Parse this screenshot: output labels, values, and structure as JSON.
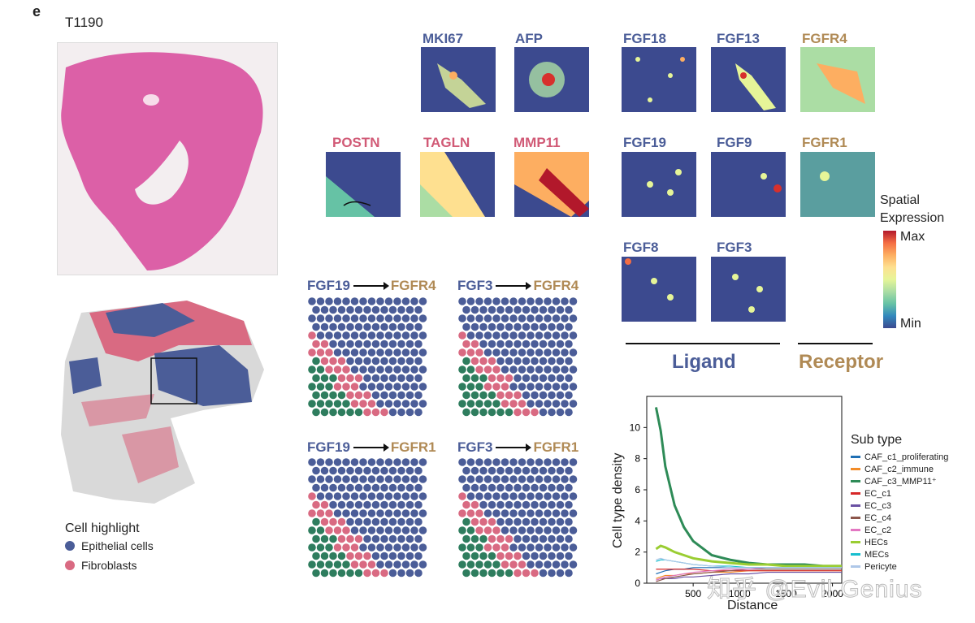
{
  "figure": {
    "panel_letter": "e",
    "sample_id": "T1190"
  },
  "genes_top": {
    "row1": [
      "MKI67",
      "AFP"
    ],
    "row2": [
      "POSTN",
      "TAGLN",
      "MMP11"
    ]
  },
  "ligand_receptor_grid": {
    "row1": [
      "FGF18",
      "FGF13",
      "FGFR4"
    ],
    "row2": [
      "FGF19",
      "FGF9",
      "FGFR1"
    ],
    "row3": [
      "FGF8",
      "FGF3"
    ],
    "ligand_label": "Ligand",
    "receptor_label": "Receptor"
  },
  "colorbar": {
    "title_line1": "Spatial",
    "title_line2": "Expression",
    "max_label": "Max",
    "min_label": "Min"
  },
  "pairs": [
    {
      "ligand": "FGF19",
      "receptor": "FGFR4"
    },
    {
      "ligand": "FGF3",
      "receptor": "FGFR4"
    },
    {
      "ligand": "FGF19",
      "receptor": "FGFR1"
    },
    {
      "ligand": "FGF3",
      "receptor": "FGFR1"
    }
  ],
  "cell_legend": {
    "title": "Cell highlight",
    "items": [
      {
        "label": "Epithelial cells",
        "color": "#4b5d98"
      },
      {
        "label": "Fibroblasts",
        "color": "#d96a82"
      }
    ]
  },
  "colors": {
    "epithelial": "#4b5d98",
    "fibroblast": "#d96a82",
    "caf": "#2e7d5e",
    "ligand_text": "#4b5d98",
    "receptor_text": "#b08a55",
    "stromal_text": "#d15a76"
  },
  "chart_data": {
    "type": "line",
    "xlabel": "Distance",
    "ylabel": "Cell type density",
    "xlim": [
      0,
      2100
    ],
    "ylim": [
      0,
      12
    ],
    "xticks": [
      "500",
      "1000",
      "1500",
      "2000"
    ],
    "yticks": [
      "0",
      "2",
      "4",
      "6",
      "8",
      "10"
    ],
    "legend_title": "Sub type",
    "legend_position": "right",
    "x": [
      100,
      150,
      200,
      300,
      400,
      500,
      700,
      900,
      1100,
      1300,
      1500,
      1700,
      1900,
      2100
    ],
    "series": [
      {
        "name": "CAF_c1_proliferating",
        "color": "#1f6fb4",
        "values": [
          0.6,
          0.7,
          0.8,
          0.9,
          0.9,
          1.0,
          1.0,
          1.0,
          1.0,
          1.0,
          1.0,
          1.0,
          1.0,
          1.0
        ]
      },
      {
        "name": "CAF_c2_immune",
        "color": "#f28c28",
        "values": [
          0.3,
          0.4,
          0.5,
          0.5,
          0.6,
          0.6,
          0.7,
          0.7,
          0.8,
          0.8,
          0.8,
          0.8,
          0.8,
          0.8
        ]
      },
      {
        "name": "CAF_c3_MMP11⁺",
        "color": "#2e8b57",
        "values": [
          11.3,
          9.8,
          7.5,
          5.0,
          3.6,
          2.7,
          1.8,
          1.5,
          1.3,
          1.2,
          1.2,
          1.2,
          1.1,
          1.1
        ]
      },
      {
        "name": "EC_c1",
        "color": "#d62728",
        "values": [
          0.9,
          0.9,
          0.9,
          0.9,
          0.9,
          0.9,
          0.8,
          0.8,
          0.8,
          0.8,
          0.8,
          0.8,
          0.8,
          0.8
        ]
      },
      {
        "name": "EC_c3",
        "color": "#6a51a3",
        "values": [
          0.2,
          0.3,
          0.3,
          0.3,
          0.4,
          0.4,
          0.5,
          0.6,
          0.6,
          0.7,
          0.7,
          0.7,
          0.7,
          0.7
        ]
      },
      {
        "name": "EC_c4",
        "color": "#8c564b",
        "values": [
          0.1,
          0.2,
          0.3,
          0.4,
          0.5,
          0.6,
          0.7,
          0.8,
          0.9,
          0.9,
          0.9,
          0.9,
          0.9,
          0.9
        ]
      },
      {
        "name": "EC_c2",
        "color": "#e377c2",
        "values": [
          0.2,
          0.3,
          0.4,
          0.5,
          0.6,
          0.7,
          0.8,
          0.9,
          0.9,
          1.0,
          1.0,
          1.0,
          1.0,
          1.0
        ]
      },
      {
        "name": "HECs",
        "color": "#9acd32",
        "values": [
          2.2,
          2.4,
          2.3,
          2.0,
          1.8,
          1.6,
          1.4,
          1.3,
          1.2,
          1.2,
          1.1,
          1.1,
          1.1,
          1.1
        ]
      },
      {
        "name": "MECs",
        "color": "#17becf",
        "values": [
          1.4,
          1.5,
          1.5,
          1.4,
          1.3,
          1.2,
          1.1,
          1.1,
          1.0,
          1.0,
          1.0,
          1.0,
          1.0,
          1.0
        ]
      },
      {
        "name": "Pericyte",
        "color": "#aec7e8",
        "values": [
          1.5,
          1.6,
          1.5,
          1.4,
          1.3,
          1.2,
          1.1,
          1.0,
          1.0,
          1.0,
          1.0,
          1.0,
          1.0,
          1.0
        ]
      }
    ]
  },
  "watermark": "知乎 @Evil Genius"
}
